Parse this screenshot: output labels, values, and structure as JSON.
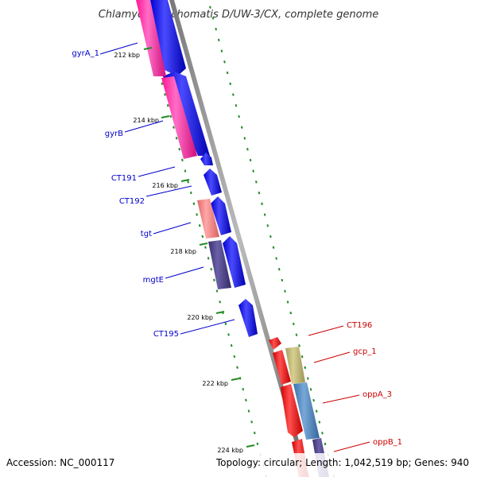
{
  "title": "Chlamydia trachomatis D/UW-3/CX, complete genome",
  "footer": {
    "accession": "Accession: NC_000117",
    "summary": "Topology: circular; Length: 1,042,519 bp; Genes: 940"
  },
  "colors": {
    "backbone": "#888888",
    "tick": "#228b22",
    "forward_label": "#0000cc",
    "reverse_label": "#cc0000"
  },
  "ticks": [
    "212 kbp",
    "214 kbp",
    "216 kbp",
    "218 kbp",
    "220 kbp",
    "222 kbp",
    "224 kbp"
  ],
  "genes_left": [
    {
      "name": "gyrA_1",
      "color": "#ff1493"
    },
    {
      "name": "gyrB",
      "color": "#ff1493"
    },
    {
      "name": "CT191",
      "color": "#0000ff"
    },
    {
      "name": "CT192",
      "color": "#0000ff"
    },
    {
      "name": "tgt",
      "color": "#f08080"
    },
    {
      "name": "mgtE",
      "color": "#483d8b"
    },
    {
      "name": "CT195",
      "color": "#0000ff"
    }
  ],
  "genes_right": [
    {
      "name": "CT196",
      "color": "#ff0000"
    },
    {
      "name": "gcp_1",
      "color": "#bdb76b"
    },
    {
      "name": "oppA_3",
      "color": "#4682b4"
    },
    {
      "name": "oppB_1",
      "color": "#483d8b"
    }
  ]
}
